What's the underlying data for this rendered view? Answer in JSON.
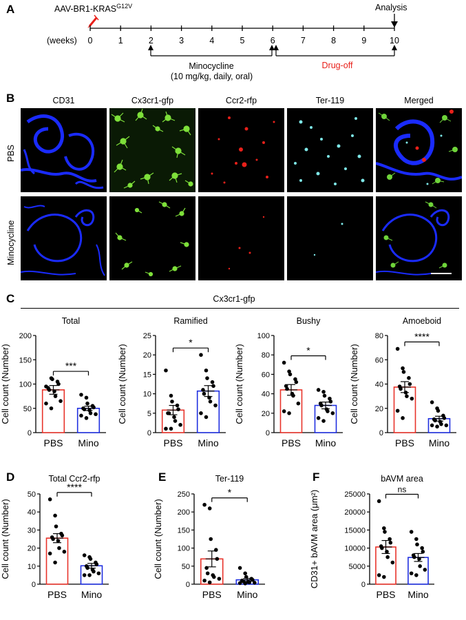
{
  "panels": {
    "A": "A",
    "B": "B",
    "C": "C",
    "D": "D",
    "E": "E",
    "F": "F"
  },
  "timeline": {
    "injection": "AAV-BR1-KRAS",
    "injection_sup": "G12V",
    "analysis": "Analysis",
    "unit_label": "(weeks)",
    "ticks": [
      "0",
      "1",
      "2",
      "3",
      "4",
      "5",
      "6",
      "7",
      "8",
      "9",
      "10"
    ],
    "treatment_line1": "Minocycline",
    "treatment_line2": "(10 mg/kg, daily, oral)",
    "drug_off": "Drug-off",
    "drug_off_color": "#e8201a",
    "syringe_color": "#e8201a"
  },
  "micrographs": {
    "columns": [
      "CD31",
      "Cx3cr1-gfp",
      "Ccr2-rfp",
      "Ter-119",
      "Merged"
    ],
    "rows": [
      "PBS",
      "Minocycline"
    ]
  },
  "section_c_title": "Cx3cr1-gfp",
  "colors": {
    "pbs_bar": "#e8332a",
    "mino_bar": "#1f2fe0",
    "dot": "#000000"
  },
  "chart_data": [
    {
      "id": "C-total",
      "type": "bar",
      "title": "Total",
      "ylabel": "Cell count  (Number)",
      "categories": [
        "PBS",
        "Mino"
      ],
      "values": [
        88,
        50
      ],
      "sem": [
        9,
        4.5
      ],
      "ylim": [
        0,
        200
      ],
      "yticks": [
        0,
        50,
        100,
        150,
        200
      ],
      "significance": "***",
      "points": [
        [
          95,
          112,
          110,
          105,
          100,
          92,
          88,
          85,
          75,
          65,
          60,
          50
        ],
        [
          78,
          72,
          60,
          55,
          52,
          50,
          48,
          46,
          40,
          38,
          35,
          30
        ]
      ]
    },
    {
      "id": "C-ramified",
      "type": "bar",
      "title": "Ramified",
      "ylabel": "Cell count (Number)",
      "categories": [
        "PBS",
        "Mino"
      ],
      "values": [
        5.8,
        10.7
      ],
      "sem": [
        1.2,
        1.4
      ],
      "ylim": [
        0,
        25
      ],
      "yticks": [
        0,
        5,
        10,
        15,
        20,
        25
      ],
      "significance": "*",
      "points": [
        [
          16,
          9.5,
          8,
          7,
          6,
          5,
          5,
          4,
          3,
          2,
          1,
          1
        ],
        [
          20,
          16,
          14,
          13,
          12,
          11,
          10,
          9,
          8,
          7,
          5,
          4
        ]
      ]
    },
    {
      "id": "C-bushy",
      "type": "bar",
      "title": "Bushy",
      "ylabel": "Cell count  (Number)",
      "categories": [
        "PBS",
        "Mino"
      ],
      "values": [
        44,
        28
      ],
      "sem": [
        5.5,
        3.5
      ],
      "ylim": [
        0,
        100
      ],
      "yticks": [
        0,
        20,
        40,
        60,
        80,
        100
      ],
      "significance": "*",
      "points": [
        [
          72,
          63,
          60,
          55,
          52,
          48,
          45,
          40,
          38,
          30,
          22,
          20
        ],
        [
          44,
          42,
          38,
          35,
          32,
          30,
          28,
          24,
          22,
          20,
          15,
          12
        ]
      ]
    },
    {
      "id": "C-amoeboid",
      "type": "bar",
      "title": "Amoeboid",
      "ylabel": "Cell count  (Number)",
      "categories": [
        "PBS",
        "Mino"
      ],
      "values": [
        37.5,
        11.5
      ],
      "sem": [
        4.5,
        2
      ],
      "ylim": [
        0,
        80
      ],
      "yticks": [
        0,
        20,
        40,
        60,
        80
      ],
      "significance": "****",
      "points": [
        [
          69,
          53,
          50,
          45,
          40,
          38,
          36,
          33,
          30,
          28,
          18,
          12
        ],
        [
          25,
          20,
          18,
          14,
          12,
          11,
          10,
          9,
          7,
          6,
          6,
          5
        ]
      ]
    },
    {
      "id": "D-ccr2",
      "type": "bar",
      "title": "Total Ccr2-rfp",
      "ylabel": "Cell count   (Number)",
      "categories": [
        "PBS",
        "Mino"
      ],
      "values": [
        25.5,
        10.2
      ],
      "sem": [
        2.5,
        1.3
      ],
      "ylim": [
        0,
        50
      ],
      "yticks": [
        0,
        10,
        20,
        30,
        40,
        50
      ],
      "significance": "****",
      "points": [
        [
          47,
          38,
          32,
          28,
          27,
          26,
          25,
          24,
          20,
          18,
          17,
          12
        ],
        [
          16,
          15,
          14,
          12,
          11,
          10,
          9,
          8,
          7,
          6,
          5,
          5
        ]
      ]
    },
    {
      "id": "E-ter119",
      "type": "bar",
      "title": "Ter-119",
      "ylabel": "Cell count (Number)",
      "categories": [
        "PBS",
        "Mino"
      ],
      "values": [
        70,
        12
      ],
      "sem": [
        22,
        4
      ],
      "ylim": [
        0,
        250
      ],
      "yticks": [
        0,
        50,
        100,
        150,
        200,
        250
      ],
      "significance": "*",
      "points": [
        [
          220,
          210,
          125,
          95,
          70,
          45,
          30,
          25,
          20,
          15,
          10,
          5
        ],
        [
          45,
          30,
          20,
          15,
          12,
          10,
          8,
          6,
          5,
          4,
          3,
          2
        ]
      ]
    },
    {
      "id": "F-bavm",
      "type": "bar",
      "title": "bAVM area",
      "ylabel": "CD31+ bAVM area (μm²)",
      "categories": [
        "PBS",
        "Mino"
      ],
      "values": [
        10300,
        7400
      ],
      "sem": [
        1800,
        1100
      ],
      "ylim": [
        0,
        25000
      ],
      "yticks": [
        0,
        5000,
        10000,
        15000,
        20000,
        25000
      ],
      "significance": "ns",
      "points": [
        [
          23000,
          15500,
          14500,
          12500,
          11500,
          10500,
          10000,
          9000,
          7500,
          6000,
          2500,
          2000
        ],
        [
          14500,
          12500,
          11000,
          10000,
          9000,
          8000,
          7500,
          7000,
          5000,
          4000,
          3000,
          2500
        ]
      ]
    }
  ]
}
